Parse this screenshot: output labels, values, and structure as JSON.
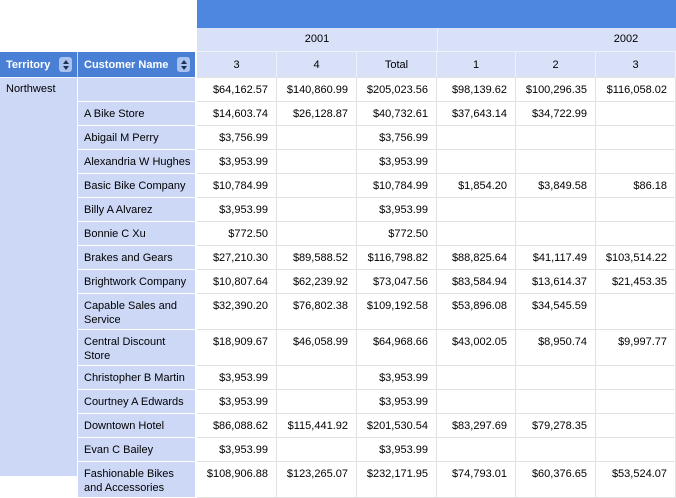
{
  "report": {
    "row_headers": [
      {
        "label": "Territory"
      },
      {
        "label": "Customer Name"
      }
    ],
    "year_groups": [
      {
        "label": "2001"
      },
      {
        "label": "2002"
      }
    ],
    "period_columns": [
      "3",
      "4",
      "Total",
      "1",
      "2",
      "3"
    ],
    "territory": "Northwest",
    "rows": [
      {
        "customer": "",
        "values": [
          "$64,162.57",
          "$140,860.99",
          "$205,023.56",
          "$98,139.62",
          "$100,296.35",
          "$116,058.02"
        ]
      },
      {
        "customer": "A Bike Store",
        "values": [
          "$14,603.74",
          "$26,128.87",
          "$40,732.61",
          "$37,643.14",
          "$34,722.99",
          ""
        ]
      },
      {
        "customer": "Abigail M Perry",
        "values": [
          "$3,756.99",
          "",
          "$3,756.99",
          "",
          "",
          ""
        ]
      },
      {
        "customer": "Alexandria W Hughes",
        "values": [
          "$3,953.99",
          "",
          "$3,953.99",
          "",
          "",
          ""
        ]
      },
      {
        "customer": "Basic Bike Company",
        "values": [
          "$10,784.99",
          "",
          "$10,784.99",
          "$1,854.20",
          "$3,849.58",
          "$86.18"
        ]
      },
      {
        "customer": "Billy A Alvarez",
        "values": [
          "$3,953.99",
          "",
          "$3,953.99",
          "",
          "",
          ""
        ]
      },
      {
        "customer": "Bonnie C Xu",
        "values": [
          "$772.50",
          "",
          "$772.50",
          "",
          "",
          ""
        ]
      },
      {
        "customer": "Brakes and Gears",
        "values": [
          "$27,210.30",
          "$89,588.52",
          "$116,798.82",
          "$88,825.64",
          "$41,117.49",
          "$103,514.22"
        ]
      },
      {
        "customer": "Brightwork Company",
        "values": [
          "$10,807.64",
          "$62,239.92",
          "$73,047.56",
          "$83,584.94",
          "$13,614.37",
          "$21,453.35"
        ]
      },
      {
        "customer": "Capable Sales and Service",
        "values": [
          "$32,390.20",
          "$76,802.38",
          "$109,192.58",
          "$53,896.08",
          "$34,545.59",
          ""
        ]
      },
      {
        "customer": "Central Discount Store",
        "values": [
          "$18,909.67",
          "$46,058.99",
          "$64,968.66",
          "$43,002.05",
          "$8,950.74",
          "$9,997.77"
        ]
      },
      {
        "customer": "Christopher B Martin",
        "values": [
          "$3,953.99",
          "",
          "$3,953.99",
          "",
          "",
          ""
        ]
      },
      {
        "customer": "Courtney A Edwards",
        "values": [
          "$3,953.99",
          "",
          "$3,953.99",
          "",
          "",
          ""
        ]
      },
      {
        "customer": "Downtown Hotel",
        "values": [
          "$86,088.62",
          "$115,441.92",
          "$201,530.54",
          "$83,297.69",
          "$79,278.35",
          ""
        ]
      },
      {
        "customer": "Evan C Bailey",
        "values": [
          "$3,953.99",
          "",
          "$3,953.99",
          "",
          "",
          ""
        ]
      },
      {
        "customer": "Fashionable Bikes and Accessories",
        "values": [
          "$108,906.88",
          "$123,265.07",
          "$232,171.95",
          "$74,793.01",
          "$60,376.65",
          "$53,524.07"
        ]
      }
    ],
    "colors": {
      "band_blue": "#4d87e0",
      "header_blue": "#4a7fd6",
      "group_row_bg": "#d8e1f8",
      "row_header_bg": "#ccd8f6",
      "grid_line": "#e2e2e2",
      "header_grid_line": "#edf1fa",
      "sort_icon_bg": "#a9c3ee",
      "sort_icon_arrow": "#1c2f55"
    }
  }
}
